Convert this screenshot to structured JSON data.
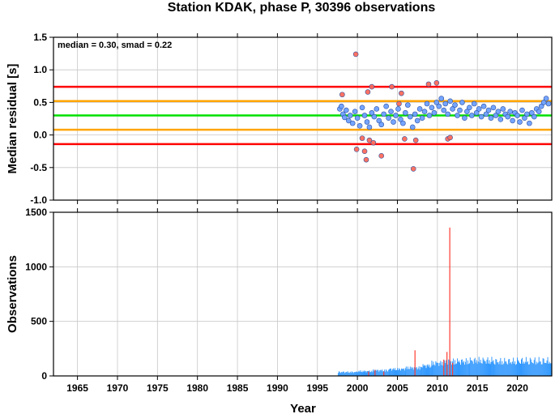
{
  "chart_data": {
    "title": "Station KDAK, phase P, 30396 observations",
    "xlabel": "Year",
    "xlim": [
      1962.0,
      2024.3
    ],
    "x_ticks": [
      1965,
      1970,
      1975,
      1980,
      1985,
      1990,
      1995,
      2000,
      2005,
      2010,
      2015,
      2020
    ],
    "panels": [
      {
        "type": "scatter",
        "ylabel": "Median residual [s]",
        "ylim": [
          -1.0,
          1.5
        ],
        "y_ticks": [
          "1.5",
          "1.0",
          "0.5",
          "0.0",
          "-0.5",
          "-1.0"
        ],
        "y_tick_values": [
          1.5,
          1.0,
          0.5,
          0.0,
          -0.5,
          -1.0
        ],
        "grid": true,
        "annotation": "median = 0.30, smad = 0.22",
        "reference_lines": [
          {
            "value": 0.3,
            "color": "#00e000"
          },
          {
            "value": 0.52,
            "color": "#ffa500"
          },
          {
            "value": 0.08,
            "color": "#ffa500"
          },
          {
            "value": 0.74,
            "color": "#ff0000"
          },
          {
            "value": -0.14,
            "color": "#ff0000"
          }
        ],
        "series": [
          {
            "color": "#6ea0ff",
            "points": [
              [
                1997.8,
                0.4
              ],
              [
                1998.0,
                0.44
              ],
              [
                1998.2,
                0.32
              ],
              [
                1998.4,
                0.27
              ],
              [
                1998.6,
                0.38
              ],
              [
                1998.9,
                0.22
              ],
              [
                1999.1,
                0.3
              ],
              [
                1999.4,
                0.18
              ],
              [
                1999.7,
                0.36
              ],
              [
                2000.0,
                0.26
              ],
              [
                2000.3,
                0.14
              ],
              [
                2000.6,
                0.42
              ],
              [
                2000.9,
                0.3
              ],
              [
                2001.2,
                0.2
              ],
              [
                2001.5,
                0.12
              ],
              [
                2001.8,
                0.34
              ],
              [
                2002.1,
                0.28
              ],
              [
                2002.4,
                0.4
              ],
              [
                2002.7,
                0.22
              ],
              [
                2003.0,
                0.16
              ],
              [
                2003.3,
                0.32
              ],
              [
                2003.6,
                0.44
              ],
              [
                2003.9,
                0.26
              ],
              [
                2004.2,
                0.36
              ],
              [
                2004.5,
                0.2
              ],
              [
                2004.8,
                0.3
              ],
              [
                2005.1,
                0.4
              ],
              [
                2005.4,
                0.24
              ],
              [
                2005.7,
                0.18
              ],
              [
                2006.0,
                0.34
              ],
              [
                2006.3,
                0.46
              ],
              [
                2006.6,
                0.28
              ],
              [
                2006.9,
                0.12
              ],
              [
                2007.2,
                0.32
              ],
              [
                2007.5,
                0.22
              ],
              [
                2007.8,
                0.4
              ],
              [
                2008.1,
                0.26
              ],
              [
                2008.4,
                0.36
              ],
              [
                2008.7,
                0.48
              ],
              [
                2009.0,
                0.3
              ],
              [
                2009.3,
                0.42
              ],
              [
                2009.6,
                0.34
              ],
              [
                2009.9,
                0.5
              ],
              [
                2010.2,
                0.44
              ],
              [
                2010.5,
                0.56
              ],
              [
                2010.8,
                0.38
              ],
              [
                2011.0,
                0.48
              ],
              [
                2011.3,
                0.32
              ],
              [
                2011.6,
                0.52
              ],
              [
                2011.9,
                0.4
              ],
              [
                2012.2,
                0.46
              ],
              [
                2012.5,
                0.3
              ],
              [
                2012.8,
                0.38
              ],
              [
                2013.1,
                0.5
              ],
              [
                2013.4,
                0.26
              ],
              [
                2013.7,
                0.36
              ],
              [
                2014.0,
                0.42
              ],
              [
                2014.3,
                0.3
              ],
              [
                2014.6,
                0.48
              ],
              [
                2014.9,
                0.34
              ],
              [
                2015.2,
                0.4
              ],
              [
                2015.5,
                0.28
              ],
              [
                2015.8,
                0.44
              ],
              [
                2016.1,
                0.32
              ],
              [
                2016.4,
                0.38
              ],
              [
                2016.7,
                0.26
              ],
              [
                2017.0,
                0.42
              ],
              [
                2017.3,
                0.3
              ],
              [
                2017.6,
                0.36
              ],
              [
                2017.9,
                0.24
              ],
              [
                2018.2,
                0.4
              ],
              [
                2018.5,
                0.32
              ],
              [
                2018.8,
                0.28
              ],
              [
                2019.1,
                0.36
              ],
              [
                2019.4,
                0.22
              ],
              [
                2019.7,
                0.34
              ],
              [
                2020.0,
                0.3
              ],
              [
                2020.3,
                0.2
              ],
              [
                2020.6,
                0.38
              ],
              [
                2020.9,
                0.26
              ],
              [
                2021.2,
                0.32
              ],
              [
                2021.5,
                0.18
              ],
              [
                2021.8,
                0.34
              ],
              [
                2022.1,
                0.28
              ],
              [
                2022.4,
                0.4
              ],
              [
                2022.7,
                0.36
              ],
              [
                2023.0,
                0.44
              ],
              [
                2023.3,
                0.5
              ],
              [
                2023.6,
                0.56
              ],
              [
                2023.9,
                0.48
              ]
            ]
          },
          {
            "color": "#ff6a5a",
            "points": [
              [
                1998.1,
                0.62
              ],
              [
                1999.8,
                1.24
              ],
              [
                1999.9,
                -0.22
              ],
              [
                2000.6,
                -0.05
              ],
              [
                2000.9,
                -0.25
              ],
              [
                2001.1,
                -0.38
              ],
              [
                2001.3,
                0.66
              ],
              [
                2001.5,
                -0.08
              ],
              [
                2001.8,
                0.74
              ],
              [
                2002.0,
                -0.12
              ],
              [
                2003.0,
                -0.32
              ],
              [
                2004.3,
                0.74
              ],
              [
                2005.2,
                0.48
              ],
              [
                2005.5,
                0.64
              ],
              [
                2005.9,
                -0.06
              ],
              [
                2007.0,
                -0.52
              ],
              [
                2007.3,
                -0.08
              ],
              [
                2008.9,
                0.78
              ],
              [
                2009.9,
                0.8
              ],
              [
                2011.3,
                -0.06
              ],
              [
                2011.6,
                -0.04
              ]
            ]
          }
        ]
      },
      {
        "type": "bar",
        "ylabel": "Observations",
        "ylim": [
          0,
          1500
        ],
        "y_ticks": [
          "1500",
          "1000",
          "500",
          "0"
        ],
        "y_tick_values": [
          1500,
          1000,
          500,
          0
        ],
        "grid": true,
        "series": [
          {
            "color": "#3399ff",
            "segments": [
              [
                1997.6,
                2000.0,
                45
              ],
              [
                2000.0,
                2002.0,
                55
              ],
              [
                2002.0,
                2004.0,
                65
              ],
              [
                2004.0,
                2006.0,
                80
              ],
              [
                2006.0,
                2008.0,
                95
              ],
              [
                2008.0,
                2009.3,
                120
              ],
              [
                2009.3,
                2011.0,
                150
              ],
              [
                2011.0,
                2014.0,
                170
              ],
              [
                2014.0,
                2017.0,
                180
              ],
              [
                2017.0,
                2020.0,
                170
              ],
              [
                2020.0,
                2024.3,
                175
              ]
            ]
          },
          {
            "color": "#ff3b30",
            "spikes": [
              [
                2001.4,
                40
              ],
              [
                2002.2,
                55
              ],
              [
                2003.3,
                40
              ],
              [
                2007.2,
                235
              ],
              [
                2010.8,
                150
              ],
              [
                2011.2,
                220
              ],
              [
                2011.55,
                1360
              ],
              [
                2011.9,
                120
              ]
            ]
          }
        ]
      }
    ]
  }
}
